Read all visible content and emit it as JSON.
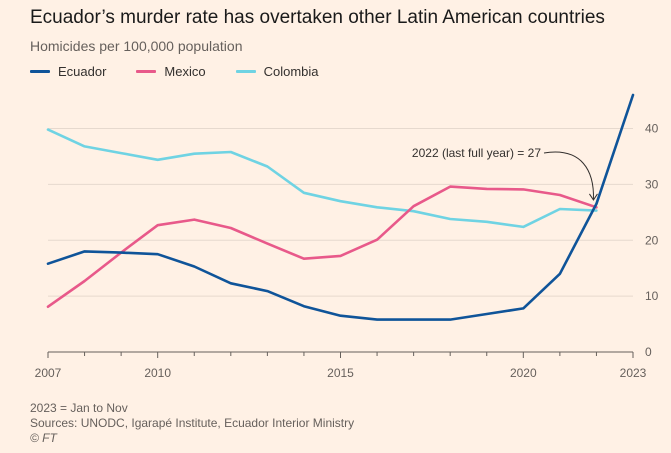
{
  "header": {
    "title": "Ecuador’s murder rate has overtaken other Latin American countries",
    "subtitle": "Homicides per 100,000 population"
  },
  "footer": {
    "note": "2023 = Jan to Nov",
    "sources": "Sources: UNODC, Igarapé Institute, Ecuador Interior Ministry",
    "copyright": "© FT"
  },
  "chart_data": {
    "type": "line",
    "title": "Ecuador’s murder rate has overtaken other Latin American countries",
    "subtitle": "Homicides per 100,000 population",
    "xlabel": "",
    "ylabel": "",
    "xlim": [
      2007,
      2023
    ],
    "ylim": [
      0,
      46
    ],
    "x_ticks": [
      2007,
      2010,
      2015,
      2020,
      2023
    ],
    "y_ticks": [
      0,
      10,
      20,
      30,
      40
    ],
    "y_axis_position": "right",
    "grid": true,
    "legend_position": "top-left",
    "annotation": {
      "text": "2022 (last full year) = 27",
      "x": 2022,
      "y": 26.5
    },
    "series": [
      {
        "name": "Ecuador",
        "color": "#0F5499",
        "x": [
          2007,
          2008,
          2009,
          2010,
          2011,
          2012,
          2013,
          2014,
          2015,
          2016,
          2017,
          2018,
          2019,
          2020,
          2021,
          2022,
          2023
        ],
        "values": [
          15.8,
          18,
          17.8,
          17.5,
          15.3,
          12.3,
          10.9,
          8.2,
          6.5,
          5.8,
          5.8,
          5.8,
          6.8,
          7.8,
          14,
          26.5,
          46
        ]
      },
      {
        "name": "Mexico",
        "color": "#E8598A",
        "x": [
          2007,
          2008,
          2009,
          2010,
          2011,
          2012,
          2013,
          2014,
          2015,
          2016,
          2017,
          2018,
          2019,
          2020,
          2021,
          2022
        ],
        "values": [
          8.1,
          12.7,
          17.8,
          22.7,
          23.7,
          22.2,
          19.4,
          16.7,
          17.2,
          20.1,
          26.1,
          29.6,
          29.2,
          29.1,
          28.1,
          25.9
        ]
      },
      {
        "name": "Colombia",
        "color": "#6FD3E3",
        "x": [
          2007,
          2008,
          2009,
          2010,
          2011,
          2012,
          2013,
          2014,
          2015,
          2016,
          2017,
          2018,
          2019,
          2020,
          2021,
          2022
        ],
        "values": [
          39.8,
          36.8,
          35.6,
          34.4,
          35.5,
          35.8,
          33.2,
          28.5,
          27,
          25.9,
          25.2,
          23.8,
          23.3,
          22.4,
          25.6,
          25.3
        ]
      }
    ]
  }
}
